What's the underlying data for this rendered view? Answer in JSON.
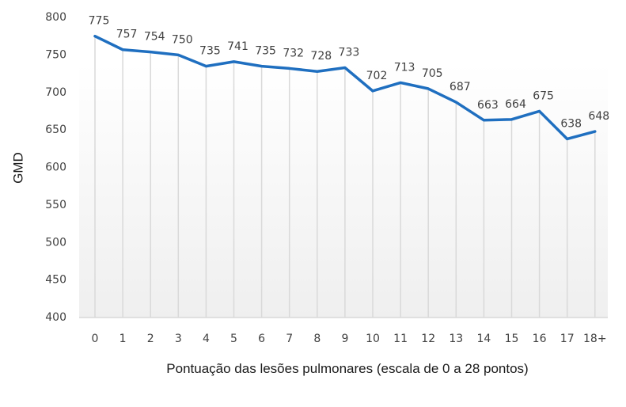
{
  "chart_data": {
    "type": "line",
    "title": "",
    "xlabel": "Pontuação das lesões pulmonares (escala de 0 a 28 pontos)",
    "ylabel": "GMD",
    "categories": [
      "0",
      "1",
      "2",
      "3",
      "4",
      "5",
      "6",
      "7",
      "8",
      "9",
      "10",
      "11",
      "12",
      "13",
      "14",
      "15",
      "16",
      "17",
      "18+"
    ],
    "series": [
      {
        "name": "GMD",
        "color": "#1f6fc0",
        "values": [
          775,
          757,
          754,
          750,
          735,
          741,
          735,
          732,
          728,
          733,
          702,
          713,
          705,
          687,
          663,
          664,
          675,
          638,
          648
        ]
      }
    ],
    "ylim": [
      400,
      800
    ],
    "yticks": [
      400,
      450,
      500,
      550,
      600,
      650,
      700,
      750,
      800
    ],
    "grid": "vertical",
    "data_labels": true,
    "legend": "none"
  },
  "style": {
    "line_color": "#1f6fc0",
    "grid_color": "#d9d9d9",
    "text_color": "#404040",
    "plot_bg_top": "#ffffff",
    "plot_bg_bottom": "#efefef"
  }
}
